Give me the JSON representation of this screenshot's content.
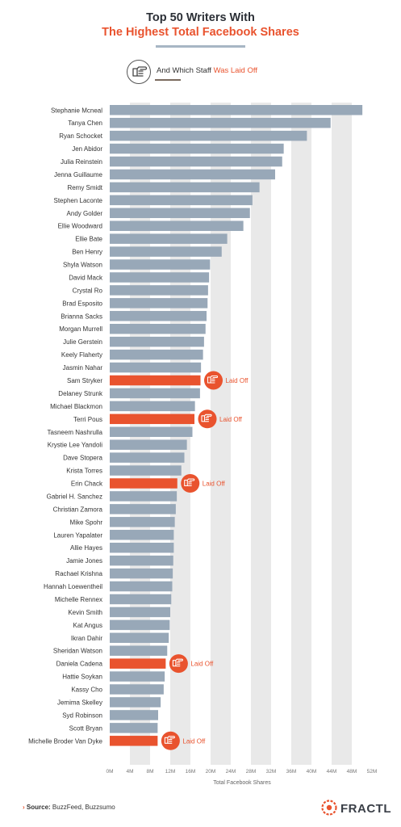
{
  "title_line1": "Top 50 Writers With",
  "title_line2": "The Highest Total Facebook Shares",
  "legend": {
    "text_prefix": "And Which Staff ",
    "text_accent": "Was Laid Off",
    "icon": "pointing-hand-icon"
  },
  "source_label": "Source:",
  "source_text": " BuzzFeed, Buzzsumo",
  "logo_text": "FRACTL",
  "colors": {
    "bar": "#98a8b8",
    "laid_off": "#e9532e",
    "grid": "#e9e9e9",
    "title": "#2b2f36"
  },
  "chart_data": {
    "type": "bar",
    "orientation": "horizontal",
    "xlabel": "Total Facebook Shares",
    "xlim": [
      0,
      52
    ],
    "x_unit": "M",
    "x_ticks": [
      "0M",
      "4M",
      "8M",
      "12M",
      "16M",
      "20M",
      "24M",
      "28M",
      "32M",
      "36M",
      "40M",
      "44M",
      "48M",
      "52M"
    ],
    "annotation_label": "Laid Off",
    "grid": "vertical bands",
    "categories": [
      "Stephanie Mcneal",
      "Tanya Chen",
      "Ryan Schocket",
      "Jen Abidor",
      "Julia Reinstein",
      "Jenna Guillaume",
      "Remy Smidt",
      "Stephen Laconte",
      "Andy Golder",
      "Ellie Woodward",
      "Ellie Bate",
      "Ben Henry",
      "Shyla Watson",
      "David Mack",
      "Crystal Ro",
      "Brad Esposito",
      "Brianna Sacks",
      "Morgan Murrell",
      "Julie Gerstein",
      "Keely Flaherty",
      "Jasmin Nahar",
      "Sam Stryker",
      "Delaney Strunk",
      "Michael Blackmon",
      "Terri Pous",
      "Tasneem Nashrulla",
      "Krystie Lee Yandoli",
      "Dave Stopera",
      "Krista Torres",
      "Erin Chack",
      "Gabriel H. Sanchez",
      "Christian Zamora",
      "Mike Spohr",
      "Lauren Yapalater",
      "Allie Hayes",
      "Jamie Jones",
      "Rachael Krishna",
      "Hannah Loewentheil",
      "Michelle Rennex",
      "Kevin Smith",
      "Kat Angus",
      "Ikran Dahir",
      "Sheridan Watson",
      "Daniela Cadena",
      "Hattie Soykan",
      "Kassy Cho",
      "Jemima Skelley",
      "Syd Robinson",
      "Scott Bryan",
      "Michelle Broder Van Dyke"
    ],
    "values": [
      50.1,
      43.8,
      39.1,
      34.5,
      34.2,
      32.8,
      29.7,
      28.3,
      27.8,
      26.5,
      23.3,
      22.2,
      19.9,
      19.7,
      19.5,
      19.4,
      19.2,
      19.0,
      18.7,
      18.5,
      18.1,
      18.0,
      17.9,
      16.9,
      16.8,
      16.4,
      15.3,
      14.8,
      14.2,
      13.4,
      13.3,
      13.1,
      12.9,
      12.7,
      12.7,
      12.6,
      12.5,
      12.4,
      12.2,
      12.0,
      11.9,
      11.7,
      11.4,
      11.1,
      10.9,
      10.7,
      10.1,
      9.6,
      9.5,
      9.5
    ],
    "laid_off": [
      false,
      false,
      false,
      false,
      false,
      false,
      false,
      false,
      false,
      false,
      false,
      false,
      false,
      false,
      false,
      false,
      false,
      false,
      false,
      false,
      false,
      true,
      false,
      false,
      true,
      false,
      false,
      false,
      false,
      true,
      false,
      false,
      false,
      false,
      false,
      false,
      false,
      false,
      false,
      false,
      false,
      false,
      false,
      true,
      false,
      false,
      false,
      false,
      false,
      true
    ]
  }
}
